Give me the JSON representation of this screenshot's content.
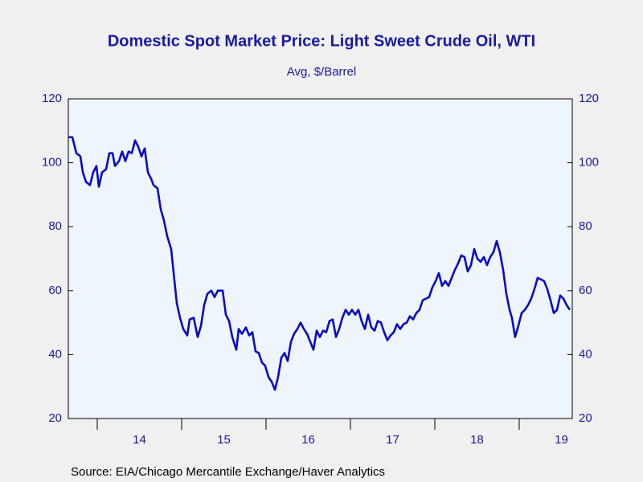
{
  "chart_data": {
    "type": "line",
    "title": "Domestic Spot Market Price: Light Sweet Crude Oil, WTI",
    "subtitle": "Avg, $/Barrel",
    "source": "Source:  EIA/Chicago Mercantile Exchange/Haver Analytics",
    "x": [
      2013.657,
      2013.705,
      2013.752,
      2013.8,
      2013.829,
      2013.867,
      2013.914,
      2013.952,
      2013.99,
      2014.019,
      2014.057,
      2014.105,
      2014.143,
      2014.181,
      2014.21,
      2014.257,
      2014.295,
      2014.333,
      2014.371,
      2014.41,
      2014.448,
      2014.486,
      2014.524,
      2014.562,
      2014.6,
      2014.638,
      2014.667,
      2014.714,
      2014.752,
      2014.79,
      2014.829,
      2014.876,
      2014.905,
      2014.943,
      2014.981,
      2015.019,
      2015.067,
      2015.095,
      2015.143,
      2015.19,
      2015.229,
      2015.267,
      2015.305,
      2015.352,
      2015.39,
      2015.429,
      2015.486,
      2015.524,
      2015.562,
      2015.6,
      2015.648,
      2015.676,
      2015.714,
      2015.762,
      2015.8,
      2015.838,
      2015.876,
      2015.914,
      2015.952,
      2015.99,
      2016.029,
      2016.067,
      2016.105,
      2016.143,
      2016.181,
      2016.219,
      2016.257,
      2016.295,
      2016.333,
      2016.371,
      2016.41,
      2016.448,
      2016.486,
      2016.524,
      2016.562,
      2016.6,
      2016.638,
      2016.676,
      2016.714,
      2016.752,
      2016.79,
      2016.829,
      2016.867,
      2016.905,
      2016.943,
      2016.981,
      2017.019,
      2017.057,
      2017.095,
      2017.133,
      2017.171,
      2017.21,
      2017.248,
      2017.286,
      2017.324,
      2017.362,
      2017.4,
      2017.438,
      2017.476,
      2017.514,
      2017.552,
      2017.59,
      2017.629,
      2017.667,
      2017.705,
      2017.743,
      2017.781,
      2017.819,
      2017.857,
      2017.895,
      2017.933,
      2017.971,
      2018.01,
      2018.048,
      2018.086,
      2018.124,
      2018.162,
      2018.2,
      2018.238,
      2018.276,
      2018.314,
      2018.352,
      2018.39,
      2018.429,
      2018.467,
      2018.505,
      2018.543,
      2018.581,
      2018.619,
      2018.657,
      2018.695,
      2018.733,
      2018.771,
      2018.81,
      2018.848,
      2018.886,
      2018.914,
      2018.952,
      2018.99,
      2019.029,
      2019.067,
      2019.105,
      2019.143,
      2019.181,
      2019.219,
      2019.257,
      2019.295,
      2019.333,
      2019.371,
      2019.41,
      2019.448,
      2019.486,
      2019.524,
      2019.562,
      2019.6
    ],
    "series": [
      {
        "color": "#0a0ac8",
        "values": [
          108,
          108,
          103,
          102,
          97,
          94,
          93,
          97,
          99,
          92.5,
          97,
          98,
          103,
          103,
          99,
          100.5,
          103.5,
          100.5,
          103.5,
          103,
          107,
          105,
          102,
          104.5,
          97,
          95,
          93,
          92,
          85.5,
          82,
          77,
          73,
          65.5,
          56,
          51.5,
          48,
          46,
          51,
          51.5,
          45.5,
          49,
          55.5,
          59,
          60,
          58,
          60,
          60,
          52.5,
          50.5,
          45.5,
          41.5,
          48,
          46.5,
          48.5,
          46,
          47,
          41,
          40.5,
          37.5,
          36.5,
          33,
          31.5,
          29,
          33,
          39,
          40.5,
          38,
          44,
          46.5,
          48,
          50,
          48,
          46.5,
          44,
          41.5,
          47.5,
          45.5,
          47.5,
          47,
          50.5,
          51,
          45.5,
          48,
          51.5,
          54,
          52.5,
          54,
          52.5,
          54,
          50.5,
          48,
          52.5,
          48.5,
          47.5,
          50.5,
          50,
          47,
          44.5,
          46,
          47,
          49.5,
          48,
          49.5,
          50,
          52,
          51,
          53,
          54,
          57,
          57.5,
          58,
          61,
          63,
          65.5,
          61.5,
          63,
          61.5,
          64,
          66.5,
          68.5,
          71,
          70.5,
          66,
          68,
          73,
          70,
          69,
          70.5,
          68,
          70.5,
          72,
          75.5,
          72,
          66.5,
          59,
          54,
          51.5,
          45.5,
          49,
          53,
          54,
          55.5,
          57.5,
          60.5,
          64,
          63.5,
          63,
          60.5,
          57,
          53,
          54,
          58.5,
          57.5,
          55.5,
          54
        ]
      }
    ],
    "xlim": [
      2013.657,
      2019.629
    ],
    "xticks": [
      {
        "value": 2014.5,
        "label": "14"
      },
      {
        "value": 2015.5,
        "label": "15"
      },
      {
        "value": 2016.5,
        "label": "16"
      },
      {
        "value": 2017.5,
        "label": "17"
      },
      {
        "value": 2018.5,
        "label": "18"
      },
      {
        "value": 2019.5,
        "label": "19"
      }
    ],
    "xminor_ticks": [
      2014,
      2015,
      2016,
      2017,
      2018,
      2019
    ],
    "ylim": [
      20,
      120
    ],
    "yticks": [
      20,
      40,
      60,
      80,
      100,
      120
    ],
    "y2lim": [
      20,
      120
    ],
    "y2ticks": [
      20,
      40,
      60,
      80,
      100,
      120
    ]
  }
}
